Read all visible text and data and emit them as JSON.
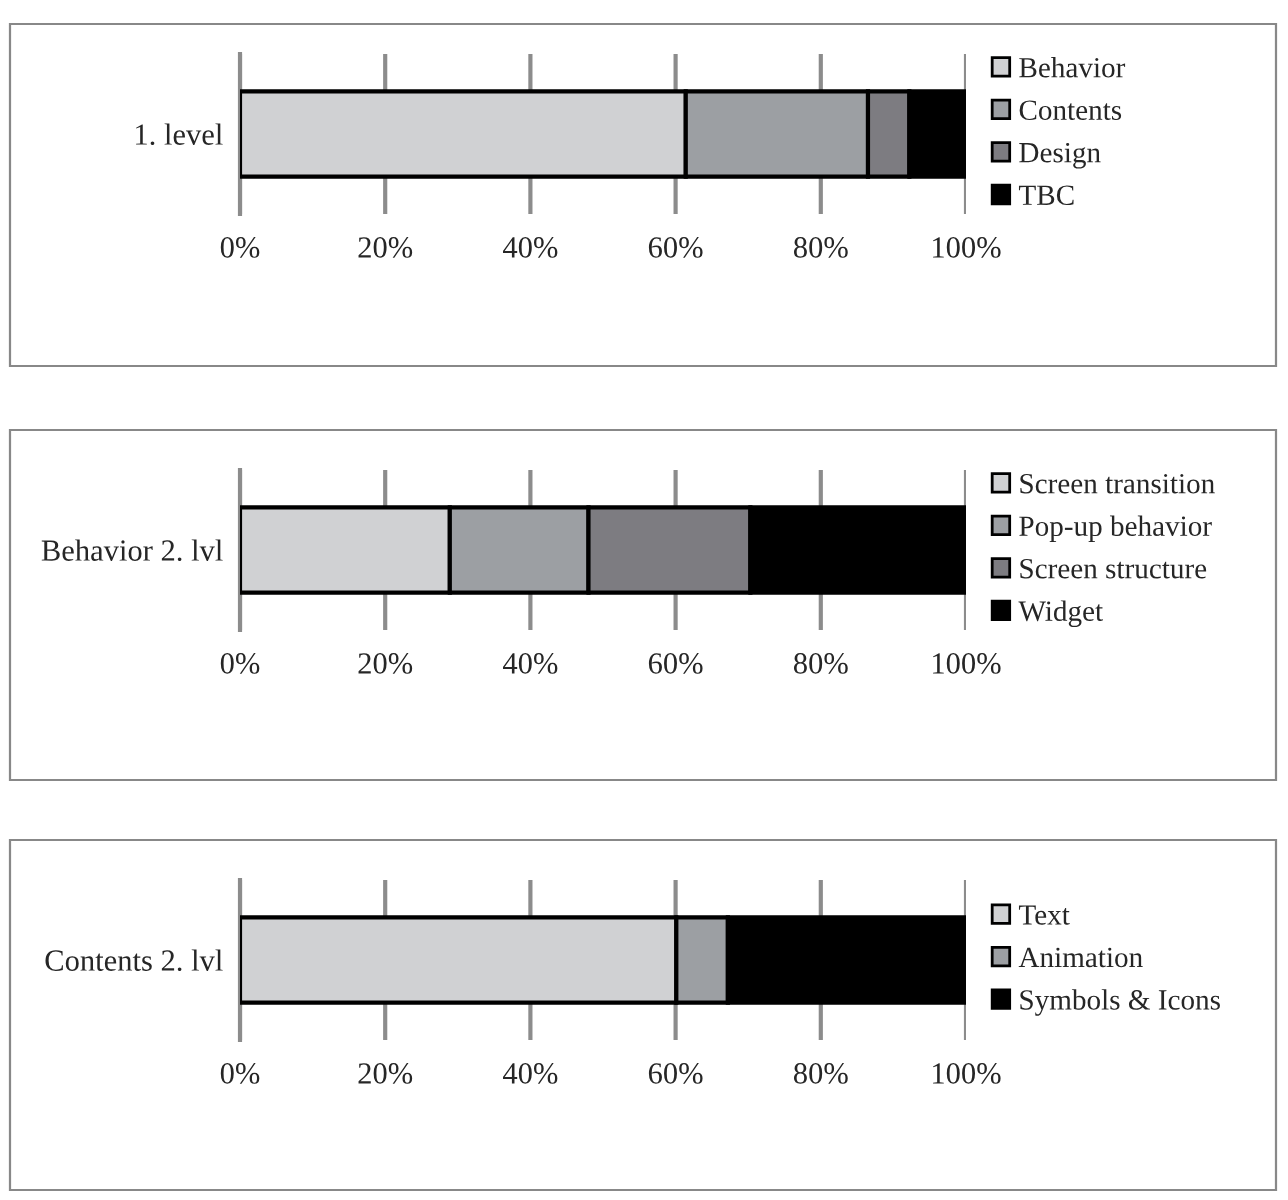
{
  "chart_data": [
    {
      "type": "bar",
      "orientation": "horizontal",
      "stacked": true,
      "categories": [
        "1. level"
      ],
      "series": [
        {
          "name": "Behavior",
          "color": "#d0d1d3",
          "values": [
            61.4
          ]
        },
        {
          "name": "Contents",
          "color": "#9c9fa3",
          "values": [
            25.1
          ]
        },
        {
          "name": "Design",
          "color": "#7d7c81",
          "values": [
            5.7
          ]
        },
        {
          "name": "TBC",
          "color": "#000000",
          "values": [
            7.8
          ]
        }
      ],
      "xlim": [
        0,
        100
      ],
      "xticks": [
        {
          "value": 0,
          "label": "0%"
        },
        {
          "value": 20,
          "label": "20%"
        },
        {
          "value": 40,
          "label": "40%"
        },
        {
          "value": 60,
          "label": "60%"
        },
        {
          "value": 80,
          "label": "80%"
        },
        {
          "value": 100,
          "label": "100%"
        }
      ],
      "grid": "x",
      "legend": "right"
    },
    {
      "type": "bar",
      "orientation": "horizontal",
      "stacked": true,
      "categories": [
        "Behavior 2. lvl"
      ],
      "series": [
        {
          "name": "Screen transition",
          "color": "#d0d1d3",
          "values": [
            28.9
          ]
        },
        {
          "name": "Pop-up behavior",
          "color": "#9c9fa3",
          "values": [
            19.1
          ]
        },
        {
          "name": "Screen structure",
          "color": "#7d7c81",
          "values": [
            22.3
          ]
        },
        {
          "name": "Widget",
          "color": "#000000",
          "values": [
            29.7
          ]
        }
      ],
      "xlim": [
        0,
        100
      ],
      "xticks": [
        {
          "value": 0,
          "label": "0%"
        },
        {
          "value": 20,
          "label": "20%"
        },
        {
          "value": 40,
          "label": "40%"
        },
        {
          "value": 60,
          "label": "60%"
        },
        {
          "value": 80,
          "label": "80%"
        },
        {
          "value": 100,
          "label": "100%"
        }
      ],
      "grid": "x",
      "legend": "right"
    },
    {
      "type": "bar",
      "orientation": "horizontal",
      "stacked": true,
      "categories": [
        "Contents 2. lvl"
      ],
      "series": [
        {
          "name": "Text",
          "color": "#d0d1d3",
          "values": [
            60.1
          ]
        },
        {
          "name": "Animation",
          "color": "#9c9fa3",
          "values": [
            7.1
          ]
        },
        {
          "name": "Symbols & Icons",
          "color": "#000000",
          "values": [
            32.8
          ]
        }
      ],
      "xlim": [
        0,
        100
      ],
      "xticks": [
        {
          "value": 0,
          "label": "0%"
        },
        {
          "value": 20,
          "label": "20%"
        },
        {
          "value": 40,
          "label": "40%"
        },
        {
          "value": 60,
          "label": "60%"
        },
        {
          "value": 80,
          "label": "80%"
        },
        {
          "value": 100,
          "label": "100%"
        }
      ],
      "grid": "x",
      "legend": "right"
    }
  ]
}
